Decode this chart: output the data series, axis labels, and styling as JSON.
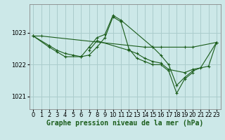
{
  "background_color": "#cce8e8",
  "grid_color": "#aacccc",
  "line_color": "#1a5c1a",
  "marker_color": "#1a5c1a",
  "xlabel": "Graphe pression niveau de la mer (hPa)",
  "xlabel_fontsize": 7,
  "tick_fontsize": 6,
  "yticks": [
    1021,
    1022,
    1023
  ],
  "ylim": [
    1020.6,
    1023.9
  ],
  "xlim": [
    -0.5,
    23.5
  ],
  "xticks": [
    0,
    1,
    2,
    3,
    4,
    5,
    6,
    7,
    8,
    9,
    10,
    11,
    12,
    13,
    14,
    15,
    16,
    17,
    18,
    19,
    20,
    21,
    22,
    23
  ],
  "series": [
    {
      "x": [
        0,
        1,
        14,
        15,
        16,
        19,
        20,
        23
      ],
      "y": [
        1022.9,
        1022.9,
        1022.55,
        1022.55,
        1022.55,
        1022.55,
        1022.55,
        1022.7
      ]
    },
    {
      "x": [
        0,
        2,
        3,
        4,
        5,
        6,
        7,
        8,
        9,
        10,
        11,
        12,
        13,
        14,
        15,
        16,
        17,
        18,
        19,
        20
      ],
      "y": [
        1022.9,
        1022.6,
        1022.45,
        1022.35,
        1022.3,
        1022.25,
        1022.3,
        1022.55,
        1022.85,
        1023.5,
        1023.35,
        1022.5,
        1022.2,
        1022.1,
        1022.0,
        1022.0,
        1021.8,
        1021.1,
        1021.55,
        1021.75
      ]
    },
    {
      "x": [
        0,
        2,
        3,
        4,
        6,
        7,
        8,
        9,
        10,
        11,
        15,
        16,
        17,
        18,
        19,
        20,
        21,
        23
      ],
      "y": [
        1022.9,
        1022.55,
        1022.4,
        1022.25,
        1022.25,
        1022.55,
        1022.85,
        1022.95,
        1023.55,
        1023.4,
        1022.55,
        1022.3,
        1022.0,
        1021.35,
        1021.6,
        1021.8,
        1021.9,
        1022.7
      ]
    },
    {
      "x": [
        7,
        8,
        12,
        13,
        14,
        15,
        16,
        17,
        19,
        20,
        22,
        23
      ],
      "y": [
        1022.45,
        1022.75,
        1022.45,
        1022.35,
        1022.2,
        1022.1,
        1022.05,
        1021.85,
        1021.75,
        1021.85,
        1021.95,
        1022.7
      ]
    }
  ]
}
